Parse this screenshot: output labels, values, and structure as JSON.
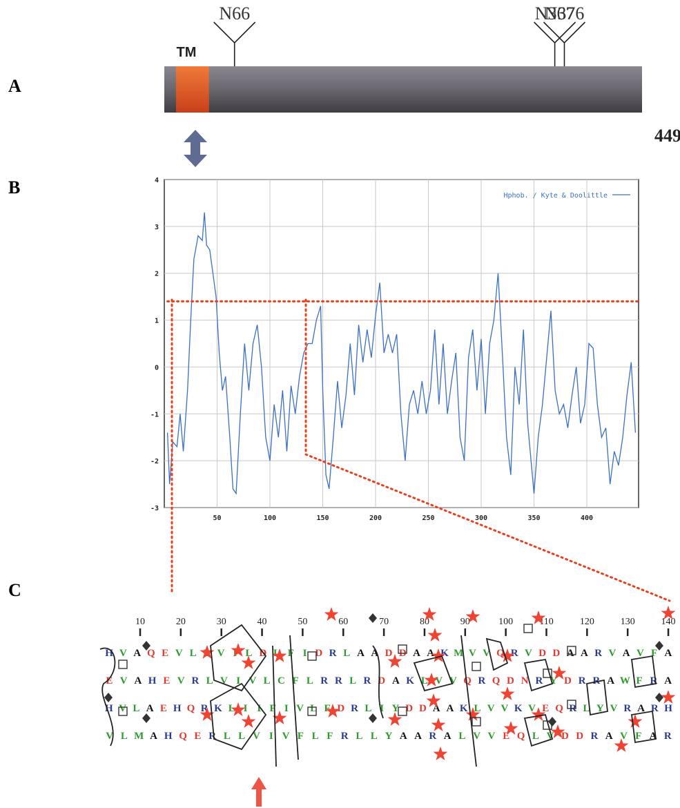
{
  "panels": [
    "A",
    "B",
    "C"
  ],
  "protein": {
    "tm_label": "TM",
    "tm_range": [
      11,
      42
    ],
    "length": 449,
    "sites": [
      {
        "label": "N66",
        "position": 66
      },
      {
        "label": "N367",
        "position": 367
      },
      {
        "label": "N376",
        "position": 376
      }
    ]
  },
  "chart_data": {
    "type": "line",
    "x": [
      3,
      5,
      8,
      12,
      15,
      18,
      22,
      25,
      28,
      32,
      36,
      38,
      40,
      43,
      46,
      49,
      52,
      55,
      58,
      62,
      65,
      68,
      72,
      76,
      80,
      84,
      88,
      92,
      96,
      100,
      104,
      108,
      112,
      116,
      120,
      124,
      128,
      132,
      136,
      140,
      144,
      148,
      150,
      153,
      156,
      160,
      164,
      168,
      172,
      176,
      180,
      184,
      188,
      192,
      196,
      200,
      204,
      208,
      212,
      216,
      220,
      224,
      228,
      232,
      236,
      240,
      244,
      248,
      252,
      256,
      260,
      264,
      268,
      272,
      276,
      280,
      284,
      288,
      292,
      296,
      300,
      304,
      308,
      312,
      316,
      320,
      324,
      328,
      332,
      336,
      340,
      344,
      348,
      350,
      354,
      358,
      362,
      366,
      370,
      374,
      378,
      382,
      386,
      390,
      394,
      398,
      402,
      406,
      410,
      414,
      418,
      422,
      426,
      430,
      434,
      438,
      442,
      446
    ],
    "series": [
      {
        "name": "Hphob. / Kyte & Doolittle",
        "color": "#3a6fc4",
        "values": [
          -1.4,
          -2.5,
          -1.6,
          -1.7,
          -1.0,
          -1.8,
          -0.5,
          1.0,
          2.3,
          2.8,
          2.7,
          3.3,
          2.6,
          2.5,
          2.0,
          1.5,
          0.3,
          -0.5,
          -0.2,
          -1.5,
          -2.6,
          -2.7,
          -1.0,
          0.5,
          -0.5,
          0.5,
          0.9,
          0.0,
          -1.5,
          -2.0,
          -0.8,
          -1.5,
          -0.5,
          -1.8,
          -0.4,
          -1.0,
          -0.2,
          0.3,
          0.5,
          0.5,
          1.0,
          1.3,
          -0.5,
          -2.3,
          -2.6,
          -1.5,
          -0.3,
          -1.3,
          -0.6,
          0.5,
          -0.6,
          0.9,
          0.1,
          0.8,
          0.2,
          1.1,
          1.8,
          0.3,
          0.7,
          0.3,
          0.7,
          -1.0,
          -2.0,
          -0.8,
          -0.5,
          -1.0,
          -0.3,
          -1.0,
          -0.5,
          0.8,
          -0.8,
          0.5,
          -1.0,
          -0.3,
          0.3,
          -1.5,
          -2.0,
          0.2,
          0.8,
          -0.5,
          0.6,
          -1.0,
          0.5,
          1.0,
          2.0,
          0.3,
          -1.5,
          -2.3,
          0.0,
          -0.8,
          0.8,
          -1.2,
          -2.2,
          -2.7,
          -1.5,
          -0.8,
          0.2,
          1.2,
          -0.5,
          -1.0,
          -0.8,
          -1.3,
          -0.6,
          0.0,
          -1.2,
          -0.8,
          0.5,
          0.4,
          -0.8,
          -1.5,
          -1.3,
          -2.5,
          -1.8,
          -2.1,
          -1.5,
          -0.6,
          0.1,
          -1.4
        ]
      }
    ],
    "xlim": [
      0,
      449
    ],
    "ylim": [
      -3,
      4
    ],
    "xticks": [
      50,
      100,
      150,
      200,
      250,
      300,
      350,
      400
    ],
    "yticks": [
      -3,
      -2,
      -1,
      0,
      1,
      2,
      3,
      4
    ],
    "grid": true,
    "legend": "upper-right",
    "threshold": 1.4,
    "threshold_color": "#e8401c"
  },
  "hca": {
    "ticks": [
      10,
      20,
      30,
      40,
      50,
      60,
      70,
      80,
      90,
      100,
      110,
      120,
      130,
      140
    ],
    "rows": [
      "HVAQEVLLVILDLFIDRLAADDAAKMVVQRVDDAARVAVFA",
      "EVAHEVRLVIVLCFLRRLRDAKLVVQRQDNRYDRRAWFRA",
      "HVLAEHQRKLIIFIVLFDRLIYDDAAKLVVKVEQRLYVRARH",
      "VLMAHQERLLVIVFLFRLLYAARALVVEQLVDDRAVFAR"
    ]
  }
}
